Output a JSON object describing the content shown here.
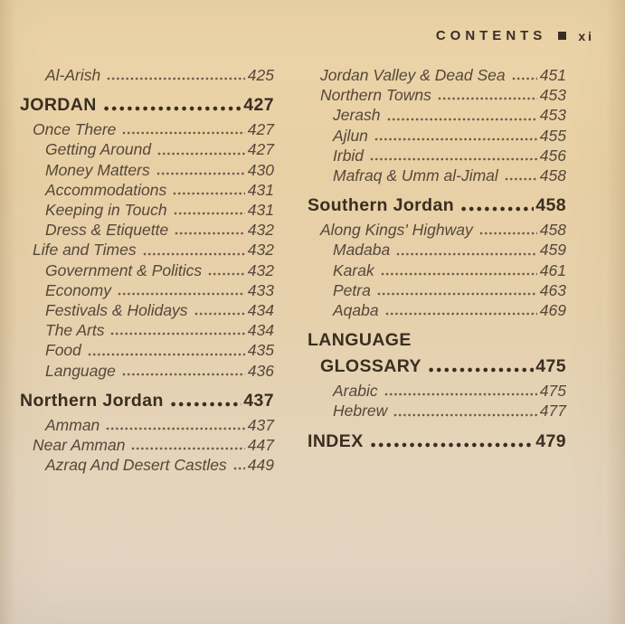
{
  "header": {
    "title": "CONTENTS",
    "separator_icon": "filled-square-icon",
    "page_number": "xi"
  },
  "colors": {
    "paper": "#e8d1a8",
    "ink": "#564739",
    "ink_dots": "#6b5a47",
    "ink_bold": "#3a2e21"
  },
  "toc": {
    "left": [
      {
        "label": "Al-Arish",
        "page": "425",
        "level": 2,
        "bold": false
      },
      {
        "label": "JORDAN",
        "page": "427",
        "level": 0,
        "bold": true
      },
      {
        "label": "Once There",
        "page": "427",
        "level": 1,
        "bold": false
      },
      {
        "label": "Getting Around",
        "page": "427",
        "level": 2,
        "bold": false
      },
      {
        "label": "Money Matters",
        "page": "430",
        "level": 2,
        "bold": false
      },
      {
        "label": "Accommodations",
        "page": "431",
        "level": 2,
        "bold": false
      },
      {
        "label": "Keeping in Touch",
        "page": "431",
        "level": 2,
        "bold": false
      },
      {
        "label": "Dress & Etiquette",
        "page": "432",
        "level": 2,
        "bold": false
      },
      {
        "label": "Life and Times",
        "page": "432",
        "level": 1,
        "bold": false
      },
      {
        "label": "Government & Politics",
        "page": "432",
        "level": 2,
        "bold": false
      },
      {
        "label": "Economy",
        "page": "433",
        "level": 2,
        "bold": false
      },
      {
        "label": "Festivals & Holidays",
        "page": "434",
        "level": 2,
        "bold": false
      },
      {
        "label": "The Arts",
        "page": "434",
        "level": 2,
        "bold": false
      },
      {
        "label": "Food",
        "page": "435",
        "level": 2,
        "bold": false
      },
      {
        "label": "Language",
        "page": "436",
        "level": 2,
        "bold": false
      },
      {
        "label": "Northern Jordan",
        "page": "437",
        "level": 0,
        "bold": true
      },
      {
        "label": "Amman",
        "page": "437",
        "level": 2,
        "bold": false
      },
      {
        "label": "Near Amman",
        "page": "447",
        "level": 1,
        "bold": false
      },
      {
        "label": "Azraq And Desert Castles",
        "page": "449",
        "level": 2,
        "bold": false
      }
    ],
    "right": [
      {
        "label": "Jordan Valley & Dead Sea",
        "page": "451",
        "level": 1,
        "bold": false
      },
      {
        "label": "Northern Towns",
        "page": "453",
        "level": 1,
        "bold": false
      },
      {
        "label": "Jerash",
        "page": "453",
        "level": 2,
        "bold": false
      },
      {
        "label": "Ajlun",
        "page": "455",
        "level": 2,
        "bold": false
      },
      {
        "label": "Irbid",
        "page": "456",
        "level": 2,
        "bold": false
      },
      {
        "label": "Mafraq & Umm al-Jimal",
        "page": "458",
        "level": 2,
        "bold": false
      },
      {
        "label": "Southern Jordan",
        "page": "458",
        "level": 0,
        "bold": true
      },
      {
        "label": "Along Kings' Highway",
        "page": "458",
        "level": 1,
        "bold": false
      },
      {
        "label": "Madaba",
        "page": "459",
        "level": 2,
        "bold": false
      },
      {
        "label": "Karak",
        "page": "461",
        "level": 2,
        "bold": false
      },
      {
        "label": "Petra",
        "page": "463",
        "level": 2,
        "bold": false
      },
      {
        "label": "Aqaba",
        "page": "469",
        "level": 2,
        "bold": false
      },
      {
        "label": "LANGUAGE",
        "page": "",
        "level": 0,
        "bold": true
      },
      {
        "label": "GLOSSARY",
        "page": "475",
        "level": 1,
        "bold": true,
        "cont": true
      },
      {
        "label": "Arabic",
        "page": "475",
        "level": 2,
        "bold": false
      },
      {
        "label": "Hebrew",
        "page": "477",
        "level": 2,
        "bold": false
      },
      {
        "label": "INDEX",
        "page": "479",
        "level": 0,
        "bold": true
      }
    ]
  }
}
